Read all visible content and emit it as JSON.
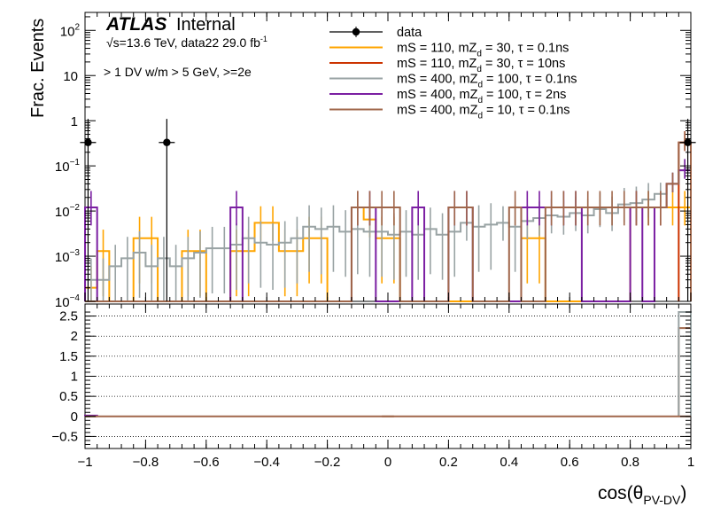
{
  "chart_data": [
    {
      "type": "line",
      "panel": "main",
      "atlas_label": "ATLAS",
      "atlas_status": "Internal",
      "energy_label": "√s=13.6 TeV, data22 29.0 fb",
      "energy_label_sup": "-1",
      "selection_label": "> 1 DV w/m > 5 GeV, >=2e",
      "ylabel": "Frac. Events",
      "yscale": "log",
      "ylim": [
        0.0001,
        250
      ],
      "xlim": [
        -1,
        1
      ],
      "ytick_labels": [
        {
          "base": "10",
          "exp": "2",
          "value": 100
        },
        {
          "base": "10",
          "exp": "",
          "value": 10
        },
        {
          "base": "1",
          "exp": "",
          "value": 1
        },
        {
          "base": "10",
          "exp": "−1",
          "value": 0.1
        },
        {
          "base": "10",
          "exp": "−2",
          "value": 0.01
        },
        {
          "base": "10",
          "exp": "−3",
          "value": 0.001
        },
        {
          "base": "10",
          "exp": "−4",
          "value": 0.0001
        }
      ],
      "legend_position": "top-center",
      "legend": [
        {
          "key": "data",
          "text": "data",
          "sub": "",
          "rest": "",
          "color": "#000000",
          "marker": "point"
        },
        {
          "key": "s110_30_01",
          "text": "mS = 110, mZ",
          "sub": "d",
          "rest": " = 30, τ = 0.1ns",
          "color": "#FFA500",
          "marker": "line"
        },
        {
          "key": "s110_30_10",
          "text": "mS = 110, mZ",
          "sub": "d",
          "rest": " = 30, τ = 10ns",
          "color": "#CC3300",
          "marker": "line"
        },
        {
          "key": "s400_100_01",
          "text": "mS = 400, mZ",
          "sub": "d",
          "rest": " = 100, τ = 0.1ns",
          "color": "#99A3A4",
          "marker": "line"
        },
        {
          "key": "s400_100_2",
          "text": "mS = 400, mZ",
          "sub": "d",
          "rest": " = 100, τ = 2ns",
          "color": "#7B1FA2",
          "marker": "line"
        },
        {
          "key": "s400_10_01",
          "text": "mS = 400, mZ",
          "sub": "d",
          "rest": " = 10, τ = 0.1ns",
          "color": "#A0674B",
          "marker": "line"
        }
      ],
      "series": [
        {
          "key": "data",
          "name": "data",
          "color": "#000000",
          "points": [
            {
              "x": -0.99,
              "y": 0.33
            },
            {
              "x": -0.73,
              "y": 0.33
            },
            {
              "x": 0.99,
              "y": 0.33
            }
          ]
        },
        {
          "key": "s110_30_01",
          "color": "#FFA500",
          "x": [
            -0.98,
            -0.94,
            -0.9,
            -0.86,
            -0.82,
            -0.78,
            -0.74,
            -0.7,
            -0.66,
            -0.62,
            -0.58,
            -0.54,
            -0.5,
            -0.46,
            -0.42,
            -0.38,
            -0.34,
            -0.3,
            -0.26,
            -0.22,
            -0.18,
            -0.14,
            -0.1,
            -0.06,
            -0.02,
            0.02,
            0.06,
            0.1,
            0.14,
            0.18,
            0.22,
            0.26,
            0.3,
            0.34,
            0.38,
            0.42,
            0.46,
            0.5,
            0.54,
            0.58,
            0.62,
            0.66,
            0.7,
            0.74,
            0.78,
            0.82,
            0.86,
            0.9,
            0.94,
            0.98
          ],
          "values": [
            0.0002,
            0.0013,
            0.0001,
            0.0001,
            0.0025,
            0.0025,
            0.0001,
            0.0001,
            0.0013,
            0.0013,
            0.0001,
            0.0001,
            0.0013,
            0.0013,
            0.0055,
            0.0055,
            0.0013,
            0.0013,
            0.0025,
            0.0025,
            0.0001,
            0.0001,
            0.012,
            0.0065,
            0.0025,
            0.0025,
            0.0001,
            0.0001,
            0.0001,
            0.0001,
            0.0001,
            0.0001,
            0.0001,
            0.0001,
            0.0001,
            0.0001,
            0.0025,
            0.0025,
            0.0001,
            0.0001,
            0.0001,
            0.0001,
            0.0001,
            0.0001,
            0.0001,
            0.012,
            0.012,
            0.012,
            0.012,
            0.012
          ]
        },
        {
          "key": "s110_30_10",
          "color": "#CC3300",
          "x": [
            0.98
          ],
          "values": [
            0.33
          ]
        },
        {
          "key": "s400_100_01",
          "color": "#99A3A4",
          "x": [
            -0.98,
            -0.94,
            -0.9,
            -0.86,
            -0.82,
            -0.78,
            -0.74,
            -0.7,
            -0.66,
            -0.62,
            -0.58,
            -0.54,
            -0.5,
            -0.46,
            -0.42,
            -0.38,
            -0.34,
            -0.3,
            -0.26,
            -0.22,
            -0.18,
            -0.14,
            -0.1,
            -0.06,
            -0.02,
            0.02,
            0.06,
            0.1,
            0.14,
            0.18,
            0.22,
            0.26,
            0.3,
            0.34,
            0.38,
            0.42,
            0.46,
            0.5,
            0.54,
            0.58,
            0.62,
            0.66,
            0.7,
            0.74,
            0.78,
            0.82,
            0.86,
            0.9,
            0.94,
            0.98
          ],
          "values": [
            0.0003,
            0.0003,
            0.0006,
            0.0009,
            0.0012,
            0.0006,
            0.0009,
            0.0006,
            0.0009,
            0.0012,
            0.0015,
            0.0015,
            0.0018,
            0.0025,
            0.002,
            0.0018,
            0.002,
            0.0025,
            0.0045,
            0.004,
            0.0045,
            0.0035,
            0.004,
            0.0035,
            0.0035,
            0.003,
            0.0035,
            0.003,
            0.004,
            0.003,
            0.0035,
            0.0055,
            0.0045,
            0.005,
            0.0055,
            0.0045,
            0.006,
            0.007,
            0.008,
            0.0075,
            0.009,
            0.008,
            0.011,
            0.009,
            0.014,
            0.015,
            0.018,
            0.024,
            0.04,
            0.08
          ]
        },
        {
          "key": "s400_100_2",
          "color": "#7B1FA2",
          "x": [
            -0.98,
            -0.94,
            -0.9,
            -0.86,
            -0.82,
            -0.78,
            -0.74,
            -0.7,
            -0.66,
            -0.62,
            -0.58,
            -0.54,
            -0.5,
            -0.46,
            -0.42,
            -0.38,
            -0.34,
            -0.3,
            -0.26,
            -0.22,
            -0.18,
            -0.14,
            -0.1,
            -0.06,
            -0.02,
            0.02,
            0.06,
            0.1,
            0.14,
            0.18,
            0.22,
            0.26,
            0.3,
            0.34,
            0.38,
            0.42,
            0.46,
            0.5,
            0.54,
            0.58,
            0.62,
            0.66,
            0.7,
            0.74,
            0.78,
            0.82,
            0.86,
            0.9,
            0.94,
            0.98
          ],
          "values": [
            0.012,
            0.0001,
            0.0001,
            0.0001,
            0.0001,
            0.0001,
            0.0001,
            0.0001,
            0.0001,
            0.0001,
            0.0001,
            0.0001,
            0.012,
            0.0001,
            0.0001,
            0.0001,
            0.0001,
            0.0001,
            0.0001,
            0.0001,
            0.0001,
            0.0001,
            0.012,
            0.012,
            0.0001,
            0.0001,
            0.0001,
            0.012,
            0.0001,
            0.0001,
            0.012,
            0.012,
            0.0001,
            0.0001,
            0.0001,
            0.0001,
            0.012,
            0.012,
            0.012,
            0.012,
            0.012,
            0.0001,
            0.0001,
            0.0001,
            0.0001,
            0.012,
            0.0001,
            0.012,
            0.04,
            0.08
          ]
        },
        {
          "key": "s400_10_01",
          "color": "#A0674B",
          "x": [
            -0.98,
            -0.94,
            -0.9,
            -0.86,
            -0.82,
            -0.78,
            -0.74,
            -0.7,
            -0.66,
            -0.62,
            -0.58,
            -0.54,
            -0.5,
            -0.46,
            -0.42,
            -0.38,
            -0.34,
            -0.3,
            -0.26,
            -0.22,
            -0.18,
            -0.14,
            -0.1,
            -0.06,
            -0.02,
            0.02,
            0.06,
            0.1,
            0.14,
            0.18,
            0.22,
            0.26,
            0.3,
            0.34,
            0.38,
            0.42,
            0.46,
            0.5,
            0.54,
            0.58,
            0.62,
            0.66,
            0.7,
            0.74,
            0.78,
            0.82,
            0.86,
            0.9,
            0.94,
            0.98
          ],
          "values": [
            0.0001,
            0.0001,
            0.0001,
            0.0001,
            0.0001,
            0.0001,
            0.0001,
            0.0001,
            0.0001,
            0.0001,
            0.0001,
            0.0001,
            0.0001,
            0.0001,
            0.0001,
            0.0001,
            0.0001,
            0.0001,
            0.0001,
            0.0001,
            0.0001,
            0.0001,
            0.012,
            0.012,
            0.012,
            0.012,
            0.0001,
            0.0001,
            0.0001,
            0.0001,
            0.012,
            0.012,
            0.0001,
            0.0001,
            0.0001,
            0.012,
            0.0001,
            0.0001,
            0.012,
            0.012,
            0.012,
            0.012,
            0.012,
            0.012,
            0.012,
            0.012,
            0.012,
            0.012,
            0.04,
            0.33
          ]
        }
      ]
    },
    {
      "type": "line",
      "panel": "ratio",
      "xlabel": "cos(θ",
      "xlabel_sub": "PV-DV",
      "xlabel_close": ")",
      "xlim": [
        -1,
        1
      ],
      "ylim": [
        -0.8,
        2.8
      ],
      "grid": "horizontal dotted",
      "xtick_labels": [
        "−1",
        "−0.8",
        "−0.6",
        "−0.4",
        "−0.2",
        "0",
        "0.2",
        "0.4",
        "0.6",
        "0.8",
        "1"
      ],
      "xtick_values": [
        -1,
        -0.8,
        -0.6,
        -0.4,
        -0.2,
        0,
        0.2,
        0.4,
        0.6,
        0.8,
        1
      ],
      "ytick_labels": [
        "2.5",
        "2",
        "1.5",
        "1",
        "0.5",
        "0",
        "−0.5"
      ],
      "ytick_values": [
        2.5,
        2,
        1.5,
        1,
        0.5,
        0,
        -0.5
      ],
      "series": [
        {
          "key": "ratio_s400_10_01",
          "color": "#A0674B",
          "x": [
            -0.98,
            0.0,
            0.98
          ],
          "values": [
            0.0,
            0.0,
            2.2
          ]
        },
        {
          "key": "ratio_s400_100_2",
          "color": "#7B1FA2",
          "x": [
            -0.98
          ],
          "values": [
            0.02
          ]
        },
        {
          "key": "ratio_s400_100_01",
          "color": "#99A3A4",
          "x": [
            0.98
          ],
          "values": [
            2.6
          ]
        }
      ]
    }
  ]
}
